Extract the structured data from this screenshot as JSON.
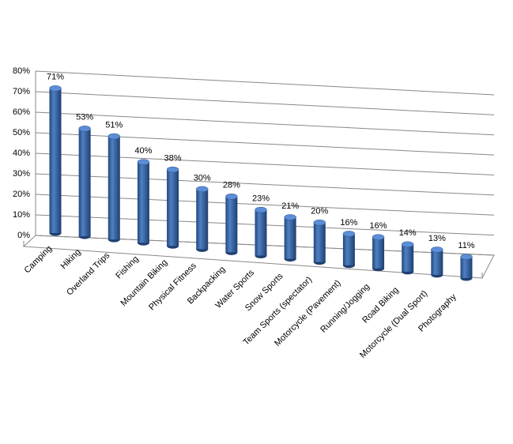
{
  "chart_data": {
    "type": "bar3d",
    "categories": [
      "Camping",
      "Hiking",
      "Overland Trips",
      "Fishing",
      "Mountain Biking",
      "Physical Fitness",
      "Backpacking",
      "Water Sports",
      "Snow Sports",
      "Team Sports (spectator)",
      "Motorcycle (Pavement)",
      "Running/Jogging",
      "Road Biking",
      "Motorcycle (Dual Sport)",
      "Photography"
    ],
    "values": [
      71,
      53,
      51,
      40,
      38,
      30,
      28,
      23,
      21,
      20,
      16,
      16,
      14,
      13,
      11
    ],
    "value_labels": [
      "71%",
      "53%",
      "51%",
      "40%",
      "38%",
      "30%",
      "28%",
      "23%",
      "21%",
      "20%",
      "16%",
      "16%",
      "14%",
      "13%",
      "11%"
    ],
    "color": "#3a6ab0",
    "ylim": [
      0,
      80
    ],
    "yticks": [
      {
        "value": 0,
        "label": "0%"
      },
      {
        "value": 10,
        "label": "10%"
      },
      {
        "value": 20,
        "label": "20%"
      },
      {
        "value": 30,
        "label": "30%"
      },
      {
        "value": 40,
        "label": "40%"
      },
      {
        "value": 50,
        "label": "50%"
      },
      {
        "value": 60,
        "label": "60%"
      },
      {
        "value": 70,
        "label": "70%"
      },
      {
        "value": 80,
        "label": "80%"
      }
    ],
    "grid": true
  }
}
